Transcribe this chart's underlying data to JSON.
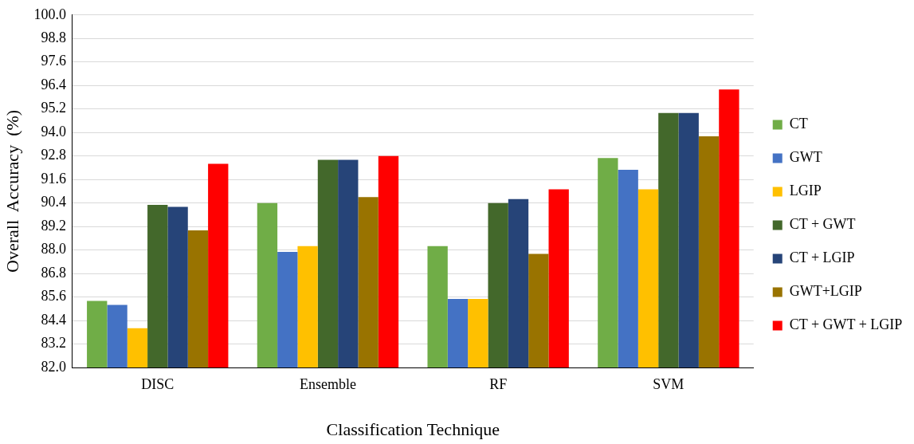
{
  "chart_data": {
    "type": "bar",
    "xlabel": "Classification Technique",
    "ylabel": "Overall  Accuracy  (%)",
    "categories": [
      "DISC",
      "Ensemble",
      "RF",
      "SVM"
    ],
    "series": [
      {
        "name": "CT",
        "color": "#70ad47",
        "values": [
          85.4,
          90.4,
          88.2,
          92.7
        ]
      },
      {
        "name": "GWT",
        "color": "#4472c4",
        "values": [
          85.2,
          87.9,
          85.5,
          92.1
        ]
      },
      {
        "name": "LGIP",
        "color": "#ffc000",
        "values": [
          84.0,
          88.2,
          85.5,
          91.1
        ]
      },
      {
        "name": "CT + GWT",
        "color": "#43682b",
        "values": [
          90.3,
          92.6,
          90.4,
          95.0
        ]
      },
      {
        "name": "CT + LGIP",
        "color": "#264478",
        "values": [
          90.2,
          92.6,
          90.6,
          95.0
        ]
      },
      {
        "name": "GWT+LGIP",
        "color": "#997300",
        "values": [
          89.0,
          90.7,
          87.8,
          93.8
        ]
      },
      {
        "name": "CT + GWT + LGIP",
        "color": "#ff0000",
        "values": [
          92.4,
          92.8,
          91.1,
          96.2
        ]
      }
    ],
    "ylim": [
      82,
      100
    ],
    "yticks": [
      {
        "value": 82,
        "label": "82.0"
      },
      {
        "value": 83.2,
        "label": "83.2"
      },
      {
        "value": 84.4,
        "label": "84.4"
      },
      {
        "value": 85.6,
        "label": "85.6"
      },
      {
        "value": 86.8,
        "label": "86.8"
      },
      {
        "value": 88,
        "label": "88.0"
      },
      {
        "value": 89.2,
        "label": "89.2"
      },
      {
        "value": 90.4,
        "label": "90.4"
      },
      {
        "value": 91.6,
        "label": "91.6"
      },
      {
        "value": 92.8,
        "label": "92.8"
      },
      {
        "value": 94,
        "label": "94.0"
      },
      {
        "value": 95.2,
        "label": "95.2"
      },
      {
        "value": 96.4,
        "label": "96.4"
      },
      {
        "value": 97.6,
        "label": "97.6"
      },
      {
        "value": 98.8,
        "label": "98.8"
      },
      {
        "value": 100,
        "label": "100.0"
      }
    ],
    "grid": "y",
    "legend": "right"
  }
}
